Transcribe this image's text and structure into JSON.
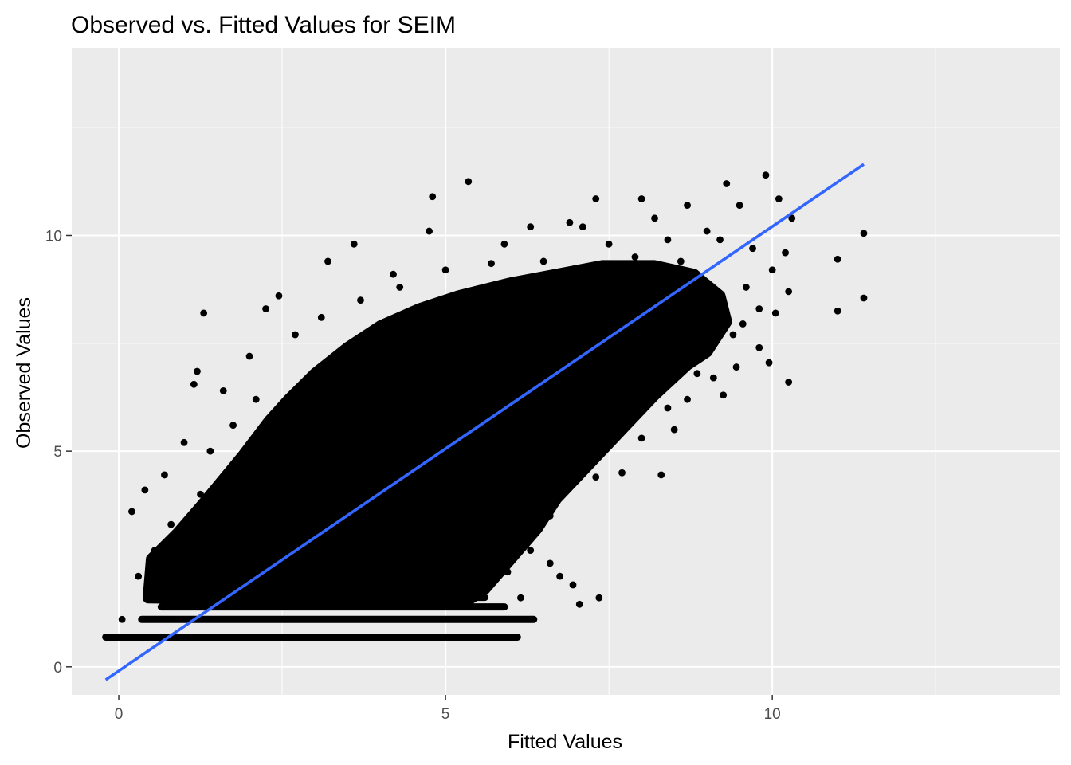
{
  "chart_data": {
    "type": "scatter",
    "title": "Observed vs. Fitted Values for SEIM",
    "xlabel": "Fitted Values",
    "ylabel": "Observed Values",
    "xlim": [
      -0.72,
      14.4
    ],
    "ylim": [
      -0.65,
      14.35
    ],
    "x_ticks": [
      0,
      5,
      10
    ],
    "y_ticks": [
      0,
      5,
      10
    ],
    "x_tick_labels": [
      "0",
      "5",
      "10"
    ],
    "y_tick_labels": [
      "0",
      "5",
      "10"
    ],
    "grid": true,
    "panel_background": "#ebebeb",
    "gridline_color": "#ffffff",
    "point_color": "#000000",
    "fit_line_color": "#3366ff",
    "fit_line": {
      "x": [
        -0.2,
        11.4
      ],
      "y": [
        -0.3,
        11.65
      ]
    },
    "cloud_polygon": [
      [
        0.45,
        1.6
      ],
      [
        0.5,
        2.5
      ],
      [
        0.9,
        3.1
      ],
      [
        1.3,
        3.8
      ],
      [
        1.9,
        4.9
      ],
      [
        2.3,
        5.7
      ],
      [
        2.6,
        6.2
      ],
      [
        3.0,
        6.8
      ],
      [
        3.5,
        7.4
      ],
      [
        4.0,
        7.9
      ],
      [
        4.6,
        8.3
      ],
      [
        5.2,
        8.6
      ],
      [
        6.0,
        8.9
      ],
      [
        6.7,
        9.1
      ],
      [
        7.4,
        9.3
      ],
      [
        8.2,
        9.3
      ],
      [
        8.8,
        9.1
      ],
      [
        9.2,
        8.6
      ],
      [
        9.3,
        8.0
      ],
      [
        9.0,
        7.3
      ],
      [
        8.7,
        7.0
      ],
      [
        8.2,
        6.3
      ],
      [
        7.7,
        5.5
      ],
      [
        7.2,
        4.7
      ],
      [
        6.7,
        3.9
      ],
      [
        6.4,
        3.2
      ],
      [
        6.0,
        2.5
      ],
      [
        5.6,
        1.8
      ],
      [
        5.3,
        1.5
      ]
    ],
    "floor_bands": [
      {
        "y": 0.69,
        "x": [
          -0.2,
          6.1
        ]
      },
      {
        "y": 1.1,
        "x": [
          0.35,
          6.35
        ]
      },
      {
        "y": 1.39,
        "x": [
          0.65,
          5.9
        ]
      },
      {
        "y": 1.61,
        "x": [
          0.7,
          5.6
        ]
      }
    ],
    "sample_points": [
      [
        5.35,
        11.25
      ],
      [
        4.8,
        10.9
      ],
      [
        9.9,
        11.4
      ],
      [
        9.3,
        11.2
      ],
      [
        10.1,
        10.85
      ],
      [
        11.4,
        10.05
      ],
      [
        11.4,
        8.55
      ],
      [
        11.0,
        9.45
      ],
      [
        11.0,
        8.25
      ],
      [
        10.25,
        6.6
      ],
      [
        9.95,
        7.05
      ],
      [
        10.25,
        8.7
      ],
      [
        10.3,
        10.4
      ],
      [
        9.5,
        10.7
      ],
      [
        8.7,
        10.7
      ],
      [
        8.0,
        10.85
      ],
      [
        7.3,
        10.85
      ],
      [
        6.9,
        10.3
      ],
      [
        6.3,
        10.2
      ],
      [
        3.6,
        9.8
      ],
      [
        4.75,
        10.1
      ],
      [
        3.2,
        9.4
      ],
      [
        2.45,
        8.6
      ],
      [
        2.25,
        8.3
      ],
      [
        1.3,
        8.2
      ],
      [
        1.2,
        6.85
      ],
      [
        1.15,
        6.55
      ],
      [
        0.7,
        4.45
      ],
      [
        0.4,
        4.1
      ],
      [
        0.2,
        3.6
      ],
      [
        1.25,
        4.0
      ],
      [
        1.4,
        5.0
      ],
      [
        1.75,
        5.6
      ],
      [
        2.1,
        6.2
      ],
      [
        3.8,
        7.2
      ],
      [
        4.3,
        8.8
      ],
      [
        5.0,
        9.2
      ],
      [
        5.9,
        9.8
      ],
      [
        7.5,
        9.8
      ],
      [
        8.2,
        10.4
      ],
      [
        9.0,
        10.1
      ],
      [
        9.7,
        9.7
      ],
      [
        10.2,
        9.6
      ],
      [
        10.05,
        8.2
      ],
      [
        9.6,
        8.8
      ],
      [
        9.8,
        7.4
      ],
      [
        9.4,
        7.7
      ],
      [
        9.1,
        6.7
      ],
      [
        8.7,
        6.2
      ],
      [
        8.4,
        6.0
      ],
      [
        8.0,
        5.3
      ],
      [
        7.7,
        4.5
      ],
      [
        7.3,
        4.4
      ],
      [
        6.9,
        4.3
      ],
      [
        6.6,
        3.5
      ],
      [
        6.3,
        2.7
      ],
      [
        6.6,
        2.4
      ],
      [
        6.75,
        2.1
      ],
      [
        6.95,
        1.9
      ],
      [
        7.35,
        1.6
      ],
      [
        7.05,
        1.45
      ],
      [
        6.3,
        1.1
      ],
      [
        6.15,
        1.6
      ],
      [
        5.95,
        2.2
      ],
      [
        5.6,
        2.0
      ],
      [
        8.3,
        4.45
      ],
      [
        8.5,
        5.5
      ],
      [
        8.85,
        6.8
      ],
      [
        9.25,
        6.3
      ],
      [
        9.45,
        6.95
      ],
      [
        9.55,
        7.95
      ],
      [
        8.9,
        8.2
      ],
      [
        9.0,
        8.5
      ],
      [
        8.6,
        9.4
      ],
      [
        7.9,
        9.5
      ],
      [
        6.5,
        9.4
      ],
      [
        5.7,
        9.35
      ],
      [
        4.2,
        9.1
      ],
      [
        3.7,
        8.5
      ],
      [
        3.1,
        8.1
      ],
      [
        2.7,
        7.7
      ],
      [
        2.0,
        7.2
      ],
      [
        1.6,
        6.4
      ],
      [
        1.0,
        5.2
      ],
      [
        0.8,
        3.3
      ],
      [
        0.55,
        2.7
      ],
      [
        0.3,
        2.1
      ],
      [
        0.05,
        1.1
      ],
      [
        -0.15,
        0.69
      ],
      [
        0.05,
        0.69
      ],
      [
        9.8,
        8.3
      ],
      [
        10.0,
        9.2
      ],
      [
        9.2,
        9.9
      ],
      [
        8.4,
        9.9
      ],
      [
        7.1,
        10.2
      ]
    ]
  }
}
